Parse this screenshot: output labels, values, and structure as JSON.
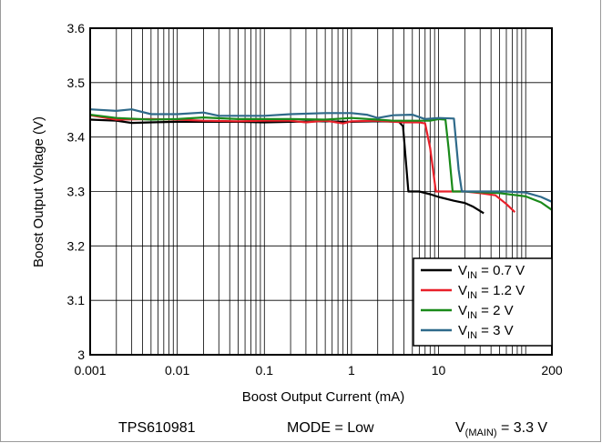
{
  "chart_data": {
    "type": "line",
    "xlabel": "Boost Output Current (mA)",
    "ylabel": "Boost Output Voltage (V)",
    "xscale": "log",
    "xlim": [
      0.001,
      200
    ],
    "ylim": [
      3.0,
      3.6
    ],
    "x_tick_labels": [
      "0.001",
      "0.01",
      "0.1",
      "1",
      "10",
      "200"
    ],
    "y_tick_labels": [
      "3",
      "3.1",
      "3.2",
      "3.3",
      "3.4",
      "3.5",
      "3.6"
    ],
    "grid": true,
    "legend_position": "bottom-right",
    "series": [
      {
        "name_main": "V",
        "name_sub": "IN",
        "name_rest": " = 0.7 V",
        "color": "#000000",
        "points": [
          [
            0.001,
            3.432
          ],
          [
            0.002,
            3.43
          ],
          [
            0.003,
            3.426
          ],
          [
            0.005,
            3.427
          ],
          [
            0.01,
            3.428
          ],
          [
            0.02,
            3.428
          ],
          [
            0.05,
            3.428
          ],
          [
            0.1,
            3.427
          ],
          [
            0.2,
            3.428
          ],
          [
            0.5,
            3.429
          ],
          [
            1,
            3.428
          ],
          [
            2,
            3.429
          ],
          [
            3.5,
            3.428
          ],
          [
            3.9,
            3.42
          ],
          [
            4.5,
            3.3
          ],
          [
            6,
            3.3
          ],
          [
            8,
            3.295
          ],
          [
            10,
            3.29
          ],
          [
            15,
            3.283
          ],
          [
            20,
            3.279
          ],
          [
            25,
            3.272
          ],
          [
            33,
            3.26
          ]
        ]
      },
      {
        "name_main": "V",
        "name_sub": "IN",
        "name_rest": " = 1.2 V",
        "color": "#e8202a",
        "points": [
          [
            0.001,
            3.44
          ],
          [
            0.002,
            3.432
          ],
          [
            0.005,
            3.433
          ],
          [
            0.01,
            3.432
          ],
          [
            0.02,
            3.43
          ],
          [
            0.05,
            3.429
          ],
          [
            0.1,
            3.43
          ],
          [
            0.2,
            3.43
          ],
          [
            0.3,
            3.427
          ],
          [
            0.5,
            3.43
          ],
          [
            0.8,
            3.425
          ],
          [
            1,
            3.429
          ],
          [
            2,
            3.43
          ],
          [
            4,
            3.427
          ],
          [
            6,
            3.427
          ],
          [
            7,
            3.425
          ],
          [
            8,
            3.38
          ],
          [
            9.3,
            3.3
          ],
          [
            12,
            3.3
          ],
          [
            20,
            3.3
          ],
          [
            30,
            3.297
          ],
          [
            45,
            3.293
          ],
          [
            60,
            3.277
          ],
          [
            75,
            3.262
          ]
        ]
      },
      {
        "name_main": "V",
        "name_sub": "IN",
        "name_rest": " = 2 V",
        "color": "#1a8a1a",
        "points": [
          [
            0.001,
            3.441
          ],
          [
            0.002,
            3.435
          ],
          [
            0.005,
            3.432
          ],
          [
            0.01,
            3.433
          ],
          [
            0.02,
            3.436
          ],
          [
            0.05,
            3.433
          ],
          [
            0.1,
            3.433
          ],
          [
            0.2,
            3.433
          ],
          [
            0.5,
            3.432
          ],
          [
            1,
            3.435
          ],
          [
            2,
            3.432
          ],
          [
            3,
            3.43
          ],
          [
            5,
            3.43
          ],
          [
            8,
            3.43
          ],
          [
            10,
            3.433
          ],
          [
            12,
            3.432
          ],
          [
            13,
            3.38
          ],
          [
            14.5,
            3.3
          ],
          [
            20,
            3.3
          ],
          [
            50,
            3.297
          ],
          [
            100,
            3.291
          ],
          [
            150,
            3.28
          ],
          [
            200,
            3.266
          ]
        ]
      },
      {
        "name_main": "V",
        "name_sub": "IN",
        "name_rest": " = 3 V",
        "color": "#2f6a8a",
        "points": [
          [
            0.001,
            3.451
          ],
          [
            0.002,
            3.448
          ],
          [
            0.003,
            3.451
          ],
          [
            0.005,
            3.442
          ],
          [
            0.01,
            3.442
          ],
          [
            0.02,
            3.445
          ],
          [
            0.03,
            3.439
          ],
          [
            0.1,
            3.439
          ],
          [
            0.2,
            3.442
          ],
          [
            0.5,
            3.444
          ],
          [
            1,
            3.444
          ],
          [
            1.5,
            3.441
          ],
          [
            2,
            3.435
          ],
          [
            3,
            3.44
          ],
          [
            5,
            3.441
          ],
          [
            7,
            3.433
          ],
          [
            10,
            3.435
          ],
          [
            15,
            3.434
          ],
          [
            17,
            3.34
          ],
          [
            18.5,
            3.3
          ],
          [
            30,
            3.3
          ],
          [
            60,
            3.3
          ],
          [
            100,
            3.298
          ],
          [
            150,
            3.29
          ],
          [
            200,
            3.281
          ]
        ]
      }
    ]
  },
  "footer": {
    "part": "TPS610981",
    "mode": "MODE = Low",
    "vmain_main": "V",
    "vmain_sub": "(MAIN)",
    "vmain_rest": " = 3.3 V"
  }
}
